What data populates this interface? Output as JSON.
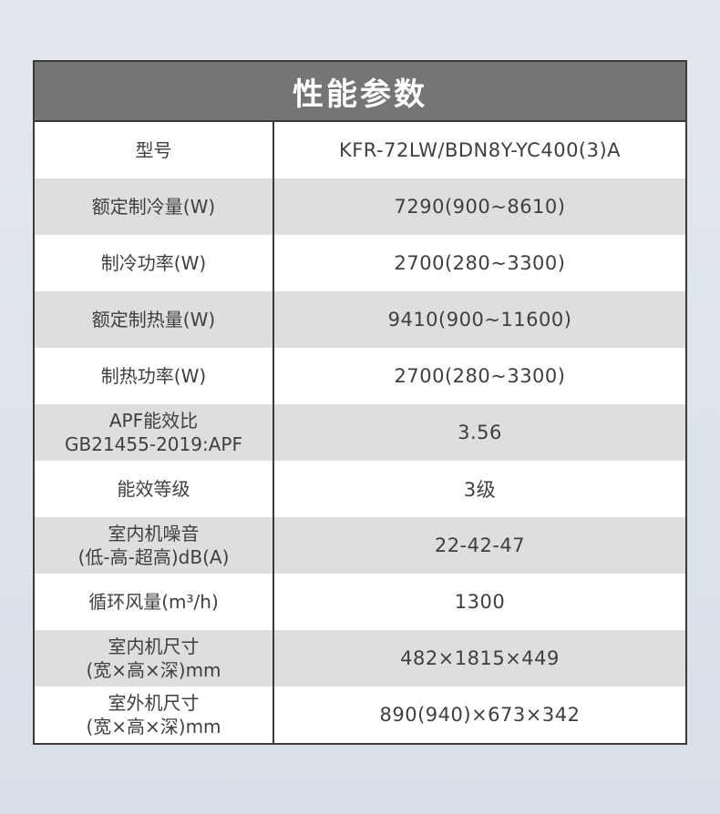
{
  "colors": {
    "page_bg_top": "#e3e8ee",
    "page_bg_bottom": "#d8dfe8",
    "table_border": "#3a3a3a",
    "header_bg": "#757575",
    "header_text": "#ffffff",
    "row_bg": "#ffffff",
    "row_alt_bg": "#dedede",
    "cell_text": "#3f3f3f"
  },
  "table": {
    "title": "性能参数",
    "rows": [
      {
        "label": "型号",
        "value": "KFR-72LW/BDN8Y-YC400(3)A"
      },
      {
        "label": "额定制冷量(W)",
        "value": "7290(900~8610)"
      },
      {
        "label": "制冷功率(W)",
        "value": "2700(280~3300)"
      },
      {
        "label": "额定制热量(W)",
        "value": "9410(900~11600)"
      },
      {
        "label": "制热功率(W)",
        "value": "2700(280~3300)"
      },
      {
        "label": "APF能效比\nGB21455-2019:APF",
        "value": "3.56"
      },
      {
        "label": "能效等级",
        "value": "3级"
      },
      {
        "label": "室内机噪音\n(低-高-超高)dB(A)",
        "value": "22-42-47"
      },
      {
        "label": "循环风量(m³/h)",
        "value": "1300"
      },
      {
        "label": "室内机尺寸\n(宽×高×深)mm",
        "value": "482×1815×449"
      },
      {
        "label": "室外机尺寸\n(宽×高×深)mm",
        "value": "890(940)×673×342"
      }
    ]
  }
}
